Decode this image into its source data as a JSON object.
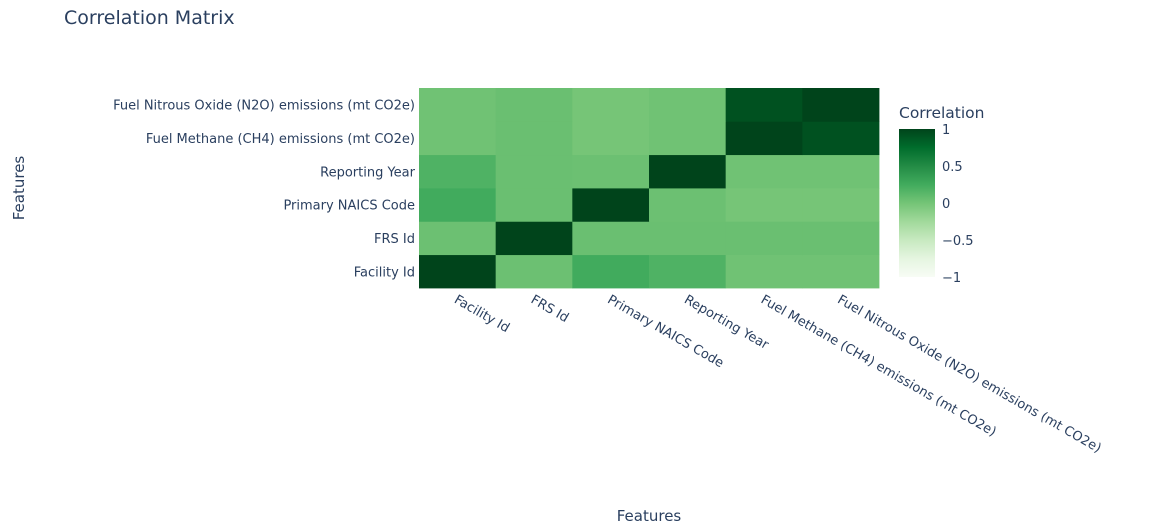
{
  "chart_data": {
    "type": "heatmap",
    "title": "Correlation Matrix",
    "xlabel": "Features",
    "ylabel": "Features",
    "features": [
      "Facility Id",
      "FRS Id",
      "Primary NAICS Code",
      "Reporting Year",
      "Fuel Methane (CH4) emissions (mt CO2e)",
      "Fuel Nitrous Oxide (N2O) emissions (mt CO2e)"
    ],
    "values": [
      [
        1.0,
        0.04,
        0.25,
        0.18,
        0.02,
        0.02
      ],
      [
        0.04,
        1.0,
        0.05,
        0.05,
        0.05,
        0.05
      ],
      [
        0.25,
        0.05,
        1.0,
        0.04,
        -0.01,
        -0.01
      ],
      [
        0.18,
        0.05,
        0.04,
        1.0,
        0.02,
        0.02
      ],
      [
        0.02,
        0.05,
        -0.01,
        0.02,
        1.0,
        0.92
      ],
      [
        0.02,
        0.05,
        -0.01,
        0.02,
        0.92,
        1.0
      ]
    ],
    "zlim": [
      -1,
      1
    ],
    "colorscale": [
      "#f7fcf5",
      "#e5f5e0",
      "#c7e9c0",
      "#a1d99b",
      "#74c476",
      "#41ab5d",
      "#238b45",
      "#006d2c",
      "#00441b"
    ],
    "colorbar": {
      "title": "Correlation",
      "ticks": [
        1,
        0.5,
        0,
        -0.5,
        -1
      ],
      "tick_labels": [
        "1",
        "0.5",
        "0",
        "−0.5",
        "−1"
      ]
    }
  }
}
